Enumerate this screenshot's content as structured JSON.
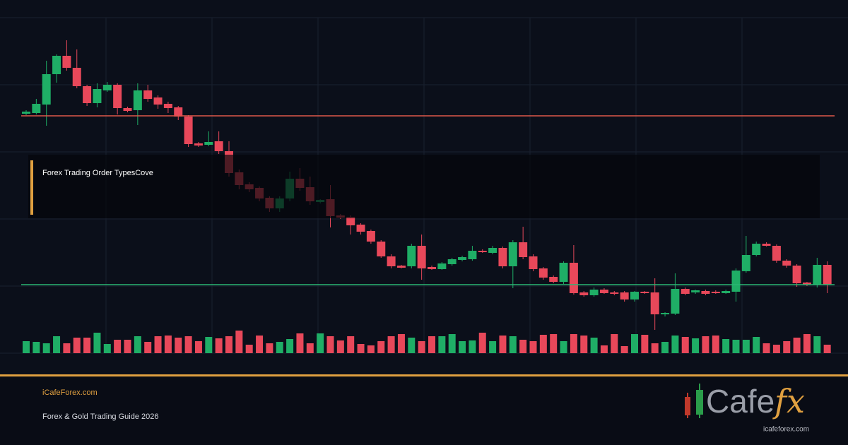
{
  "chart_data": {
    "type": "candlestick",
    "ylim": [
      0,
      475
    ],
    "yticks": [
      0,
      95,
      190,
      285,
      380,
      475
    ],
    "grid": true,
    "up_color": "#1fae66",
    "down_color": "#e8485a",
    "open": [
      339,
      340,
      352,
      395,
      421,
      404,
      378,
      354,
      372,
      380,
      347,
      344,
      372,
      362,
      353,
      348,
      335,
      297,
      295,
      300,
      286,
      256,
      239,
      234,
      220,
      205,
      219,
      247,
      235,
      214,
      218,
      195,
      193,
      182,
      173,
      158,
      137,
      124,
      123,
      152,
      122,
      119,
      126,
      132,
      133,
      145,
      142,
      149,
      123,
      157,
      137,
      120,
      108,
      101,
      128,
      86,
      82,
      90,
      86,
      86,
      76,
      87,
      86,
      55,
      56,
      91,
      86,
      88,
      87,
      85,
      87,
      116,
      139,
      155,
      152,
      131,
      124,
      100,
      97,
      125
    ],
    "high": [
      344,
      360,
      414,
      423,
      443,
      430,
      380,
      382,
      384,
      382,
      349,
      382,
      380,
      365,
      356,
      350,
      337,
      299,
      314,
      314,
      300,
      260,
      242,
      236,
      222,
      222,
      257,
      262,
      250,
      218,
      238,
      197,
      195,
      184,
      175,
      160,
      140,
      125,
      155,
      168,
      124,
      129,
      135,
      138,
      152,
      147,
      152,
      151,
      160,
      179,
      140,
      122,
      110,
      130,
      153,
      88,
      93,
      92,
      88,
      88,
      88,
      88,
      106,
      58,
      113,
      93,
      90,
      90,
      89,
      90,
      120,
      166,
      158,
      157,
      154,
      133,
      126,
      101,
      135,
      130
    ],
    "low": [
      337,
      338,
      322,
      383,
      400,
      375,
      350,
      348,
      370,
      338,
      341,
      323,
      356,
      346,
      340,
      330,
      292,
      292,
      293,
      282,
      250,
      232,
      228,
      215,
      200,
      200,
      215,
      230,
      210,
      212,
      178,
      190,
      168,
      168,
      155,
      135,
      120,
      120,
      120,
      104,
      118,
      118,
      124,
      130,
      131,
      142,
      140,
      120,
      92,
      133,
      116,
      104,
      99,
      98,
      83,
      80,
      80,
      84,
      82,
      73,
      73,
      84,
      33,
      52,
      54,
      82,
      84,
      82,
      84,
      84,
      73,
      114,
      137,
      151,
      128,
      121,
      94,
      95,
      93,
      85
    ],
    "close": [
      342,
      353,
      395,
      421,
      404,
      378,
      354,
      374,
      380,
      347,
      343,
      372,
      360,
      352,
      347,
      335,
      296,
      294,
      299,
      286,
      255,
      238,
      232,
      219,
      205,
      219,
      247,
      234,
      215,
      217,
      194,
      192,
      181,
      172,
      158,
      137,
      123,
      121,
      152,
      120,
      119,
      127,
      133,
      136,
      145,
      143,
      149,
      123,
      157,
      136,
      119,
      107,
      101,
      128,
      85,
      82,
      90,
      85,
      84,
      76,
      87,
      85,
      55,
      57,
      91,
      84,
      89,
      84,
      85,
      88,
      117,
      139,
      155,
      152,
      131,
      124,
      99,
      97,
      125,
      97
    ],
    "volume": [
      17,
      16,
      14,
      24,
      14,
      22,
      22,
      29,
      13,
      19,
      19,
      24,
      16,
      24,
      25,
      22,
      24,
      17,
      23,
      21,
      24,
      32,
      12,
      25,
      14,
      16,
      20,
      28,
      14,
      28,
      24,
      18,
      24,
      13,
      11,
      17,
      24,
      27,
      22,
      17,
      24,
      24,
      27,
      17,
      18,
      29,
      17,
      25,
      24,
      19,
      17,
      26,
      27,
      17,
      27,
      25,
      22,
      11,
      27,
      10,
      27,
      26,
      14,
      16,
      25,
      23,
      21,
      24,
      25,
      20,
      19,
      19,
      23,
      14,
      12,
      17,
      22,
      27,
      24,
      12
    ],
    "volume_ylim": [
      0,
      100
    ],
    "levels": [
      {
        "value": 336,
        "color": "#e0584a"
      },
      {
        "value": 97,
        "color": "#2bb673"
      }
    ]
  },
  "overlay": {
    "title": "Forex Trading Order TypesCove"
  },
  "footer": {
    "site": "iCafeForex.com",
    "subtitle": "Forex & Gold Trading Guide 2026"
  },
  "logo": {
    "brand": "Cafe",
    "accent": "fx",
    "url": "icafeforex.com"
  }
}
